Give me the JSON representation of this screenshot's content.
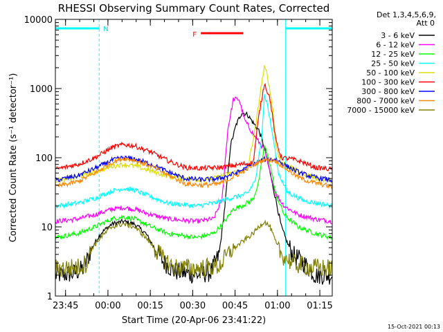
{
  "chart_data": {
    "type": "line",
    "title": "RHESSI Observing Summary Count Rates, Corrected",
    "xlabel": "Start Time (20-Apr-06 23:41:22)",
    "ylabel": "Corrected Count Rate (s⁻¹ detector⁻¹)",
    "y_scale": "log",
    "ylim": [
      1,
      10000
    ],
    "xlim_minutes_after_start": [
      0,
      98
    ],
    "x_ticks": [
      {
        "label": "23:45",
        "t": 3.6
      },
      {
        "label": "00:00",
        "t": 18.6
      },
      {
        "label": "00:15",
        "t": 33.6
      },
      {
        "label": "00:30",
        "t": 48.6
      },
      {
        "label": "00:45",
        "t": 63.6
      },
      {
        "label": "01:00",
        "t": 78.6
      },
      {
        "label": "01:15",
        "t": 93.6
      }
    ],
    "y_ticks": [
      {
        "label": "1",
        "v": 1
      },
      {
        "label": "10",
        "v": 10
      },
      {
        "label": "100",
        "v": 100
      },
      {
        "label": "1000",
        "v": 1000
      },
      {
        "label": "10000",
        "v": 10000
      }
    ],
    "legend_header": [
      "Det 1,3,4,5,6,9,",
      "Att 0"
    ],
    "legend_position": "right",
    "flag_marks": [
      {
        "label": "N"
      },
      {
        "label": "F"
      }
    ],
    "markers": {
      "cyan_bars": [
        [
          0,
          15.5
        ],
        [
          81.5,
          98
        ]
      ],
      "red_bar": [
        51.5,
        66.5
      ],
      "dashed_lines": [
        15.5,
        98
      ],
      "solid_line": 81.5
    },
    "series": [
      {
        "name": "3 - 6 keV",
        "color": "#000000",
        "points": [
          [
            0,
            2.0
          ],
          [
            6,
            2.1
          ],
          [
            10,
            2.5
          ],
          [
            13,
            5
          ],
          [
            16,
            8
          ],
          [
            20,
            11
          ],
          [
            24,
            12
          ],
          [
            28,
            11
          ],
          [
            32,
            8
          ],
          [
            35,
            5
          ],
          [
            38,
            3.2
          ],
          [
            42,
            2.3
          ],
          [
            50,
            2.0
          ],
          [
            55,
            2.2
          ],
          [
            58,
            4
          ],
          [
            60,
            20
          ],
          [
            62,
            150
          ],
          [
            64,
            300
          ],
          [
            66,
            450
          ],
          [
            68,
            420
          ],
          [
            70,
            320
          ],
          [
            72,
            250
          ],
          [
            74,
            140
          ],
          [
            76,
            60
          ],
          [
            78,
            25
          ],
          [
            80,
            10
          ],
          [
            82,
            6
          ],
          [
            84,
            4
          ],
          [
            88,
            3
          ],
          [
            92,
            2
          ],
          [
            98,
            2
          ]
        ]
      },
      {
        "name": "6 - 12 keV",
        "color": "#ff00ff",
        "points": [
          [
            0,
            12
          ],
          [
            8,
            13
          ],
          [
            14,
            15
          ],
          [
            20,
            18
          ],
          [
            24,
            19
          ],
          [
            28,
            18
          ],
          [
            34,
            15
          ],
          [
            40,
            13
          ],
          [
            50,
            12
          ],
          [
            56,
            13
          ],
          [
            59,
            25
          ],
          [
            61,
            250
          ],
          [
            63,
            700
          ],
          [
            65,
            700
          ],
          [
            67,
            350
          ],
          [
            70,
            220
          ],
          [
            74,
            130
          ],
          [
            76,
            60
          ],
          [
            78,
            30
          ],
          [
            81,
            20
          ],
          [
            86,
            15
          ],
          [
            92,
            13
          ],
          [
            98,
            12
          ]
        ]
      },
      {
        "name": "12 - 25 keV",
        "color": "#00ff00",
        "points": [
          [
            0,
            7
          ],
          [
            8,
            8
          ],
          [
            14,
            10
          ],
          [
            20,
            13
          ],
          [
            24,
            14
          ],
          [
            28,
            13
          ],
          [
            34,
            10
          ],
          [
            40,
            8
          ],
          [
            50,
            7
          ],
          [
            56,
            8
          ],
          [
            60,
            12
          ],
          [
            63,
            18
          ],
          [
            66,
            20
          ],
          [
            70,
            25
          ],
          [
            72,
            45
          ],
          [
            74,
            150
          ],
          [
            76,
            80
          ],
          [
            78,
            30
          ],
          [
            81,
            15
          ],
          [
            86,
            10
          ],
          [
            92,
            8
          ],
          [
            98,
            7
          ]
        ]
      },
      {
        "name": "25 - 50 keV",
        "color": "#00ffff",
        "points": [
          [
            0,
            20
          ],
          [
            8,
            22
          ],
          [
            14,
            26
          ],
          [
            20,
            33
          ],
          [
            24,
            36
          ],
          [
            28,
            34
          ],
          [
            34,
            27
          ],
          [
            40,
            22
          ],
          [
            50,
            20
          ],
          [
            56,
            22
          ],
          [
            62,
            26
          ],
          [
            68,
            30
          ],
          [
            71,
            50
          ],
          [
            73,
            200
          ],
          [
            74,
            800
          ],
          [
            75,
            600
          ],
          [
            77,
            200
          ],
          [
            79,
            60
          ],
          [
            82,
            32
          ],
          [
            88,
            24
          ],
          [
            98,
            20
          ]
        ]
      },
      {
        "name": "50 - 100 keV",
        "color": "#dddd00",
        "points": [
          [
            0,
            47
          ],
          [
            8,
            52
          ],
          [
            14,
            62
          ],
          [
            20,
            75
          ],
          [
            24,
            80
          ],
          [
            28,
            76
          ],
          [
            34,
            64
          ],
          [
            40,
            54
          ],
          [
            50,
            48
          ],
          [
            56,
            50
          ],
          [
            62,
            60
          ],
          [
            68,
            68
          ],
          [
            71,
            300
          ],
          [
            73,
            1200
          ],
          [
            74,
            2000
          ],
          [
            75,
            1600
          ],
          [
            77,
            500
          ],
          [
            78,
            150
          ],
          [
            80,
            85
          ],
          [
            84,
            70
          ],
          [
            88,
            58
          ],
          [
            94,
            48
          ],
          [
            98,
            47
          ]
        ]
      },
      {
        "name": "100 - 300 keV",
        "color": "#ff0000",
        "points": [
          [
            0,
            68
          ],
          [
            8,
            80
          ],
          [
            14,
            100
          ],
          [
            20,
            140
          ],
          [
            24,
            155
          ],
          [
            28,
            148
          ],
          [
            34,
            120
          ],
          [
            40,
            90
          ],
          [
            46,
            72
          ],
          [
            52,
            70
          ],
          [
            58,
            72
          ],
          [
            64,
            78
          ],
          [
            70,
            85
          ],
          [
            72,
            400
          ],
          [
            74,
            1200
          ],
          [
            76,
            700
          ],
          [
            78,
            180
          ],
          [
            80,
            100
          ],
          [
            84,
            95
          ],
          [
            88,
            85
          ],
          [
            92,
            72
          ],
          [
            98,
            68
          ]
        ]
      },
      {
        "name": "300 - 800 keV",
        "color": "#0000ff",
        "points": [
          [
            0,
            47
          ],
          [
            8,
            55
          ],
          [
            14,
            70
          ],
          [
            20,
            92
          ],
          [
            24,
            100
          ],
          [
            28,
            96
          ],
          [
            34,
            80
          ],
          [
            40,
            62
          ],
          [
            46,
            50
          ],
          [
            52,
            48
          ],
          [
            58,
            50
          ],
          [
            64,
            60
          ],
          [
            70,
            80
          ],
          [
            74,
            95
          ],
          [
            78,
            95
          ],
          [
            82,
            75
          ],
          [
            86,
            62
          ],
          [
            90,
            54
          ],
          [
            98,
            47
          ]
        ]
      },
      {
        "name": "800 - 7000 keV",
        "color": "#ff8800",
        "points": [
          [
            0,
            38
          ],
          [
            8,
            45
          ],
          [
            14,
            60
          ],
          [
            20,
            85
          ],
          [
            24,
            98
          ],
          [
            28,
            92
          ],
          [
            34,
            75
          ],
          [
            40,
            56
          ],
          [
            46,
            42
          ],
          [
            52,
            40
          ],
          [
            58,
            42
          ],
          [
            64,
            55
          ],
          [
            70,
            78
          ],
          [
            74,
            95
          ],
          [
            78,
            90
          ],
          [
            82,
            68
          ],
          [
            86,
            52
          ],
          [
            90,
            45
          ],
          [
            98,
            38
          ]
        ]
      },
      {
        "name": "7000 - 15000 keV",
        "color": "#808000",
        "points": [
          [
            0,
            2.5
          ],
          [
            8,
            2.6
          ],
          [
            11,
            3
          ],
          [
            13,
            5
          ],
          [
            16,
            7
          ],
          [
            20,
            10
          ],
          [
            24,
            11
          ],
          [
            28,
            10
          ],
          [
            32,
            7
          ],
          [
            35,
            5
          ],
          [
            38,
            3.5
          ],
          [
            42,
            2.6
          ],
          [
            50,
            2.5
          ],
          [
            58,
            2.7
          ],
          [
            62,
            4.5
          ],
          [
            66,
            6
          ],
          [
            70,
            8
          ],
          [
            72,
            10
          ],
          [
            74,
            12
          ],
          [
            76,
            10
          ],
          [
            78,
            6
          ],
          [
            80,
            4
          ],
          [
            84,
            3
          ],
          [
            90,
            2.6
          ],
          [
            98,
            2.5
          ]
        ]
      }
    ]
  },
  "footer_date": "15-Oct-2021 00:13"
}
